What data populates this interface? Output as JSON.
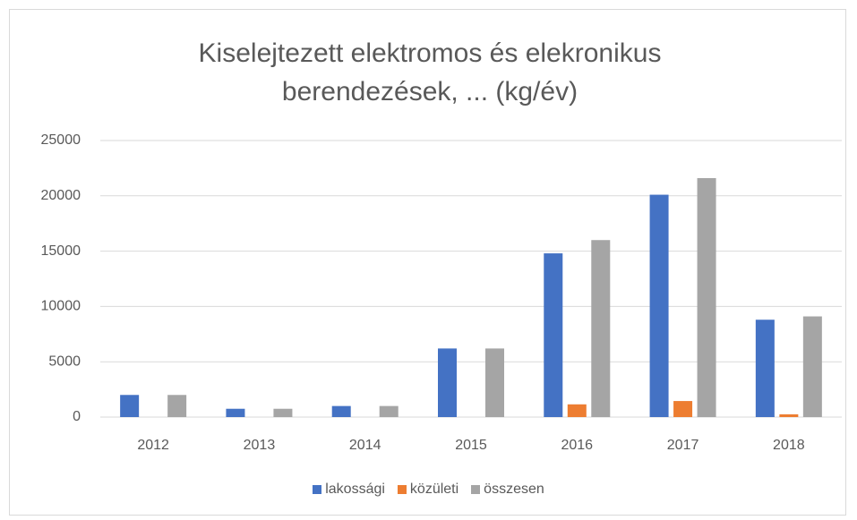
{
  "chart_data": {
    "type": "bar",
    "title": "Kiselejtezett elektromos és elekronikus berendezések, ... (kg/év)",
    "categories": [
      "2012",
      "2013",
      "2014",
      "2015",
      "2016",
      "2017",
      "2018"
    ],
    "series": [
      {
        "name": "lakossági",
        "color": "#4472c4",
        "values": [
          2000,
          750,
          1000,
          6200,
          14800,
          20100,
          8800
        ]
      },
      {
        "name": "közületi",
        "color": "#ed7d31",
        "values": [
          0,
          0,
          0,
          0,
          1150,
          1450,
          250
        ]
      },
      {
        "name": "összesen",
        "color": "#a5a5a5",
        "values": [
          2000,
          750,
          1000,
          6200,
          16000,
          21600,
          9100
        ]
      }
    ],
    "ylim": [
      0,
      25000
    ],
    "yticks": [
      0,
      5000,
      10000,
      15000,
      20000,
      25000
    ],
    "grid": true,
    "legend": "bottom"
  }
}
